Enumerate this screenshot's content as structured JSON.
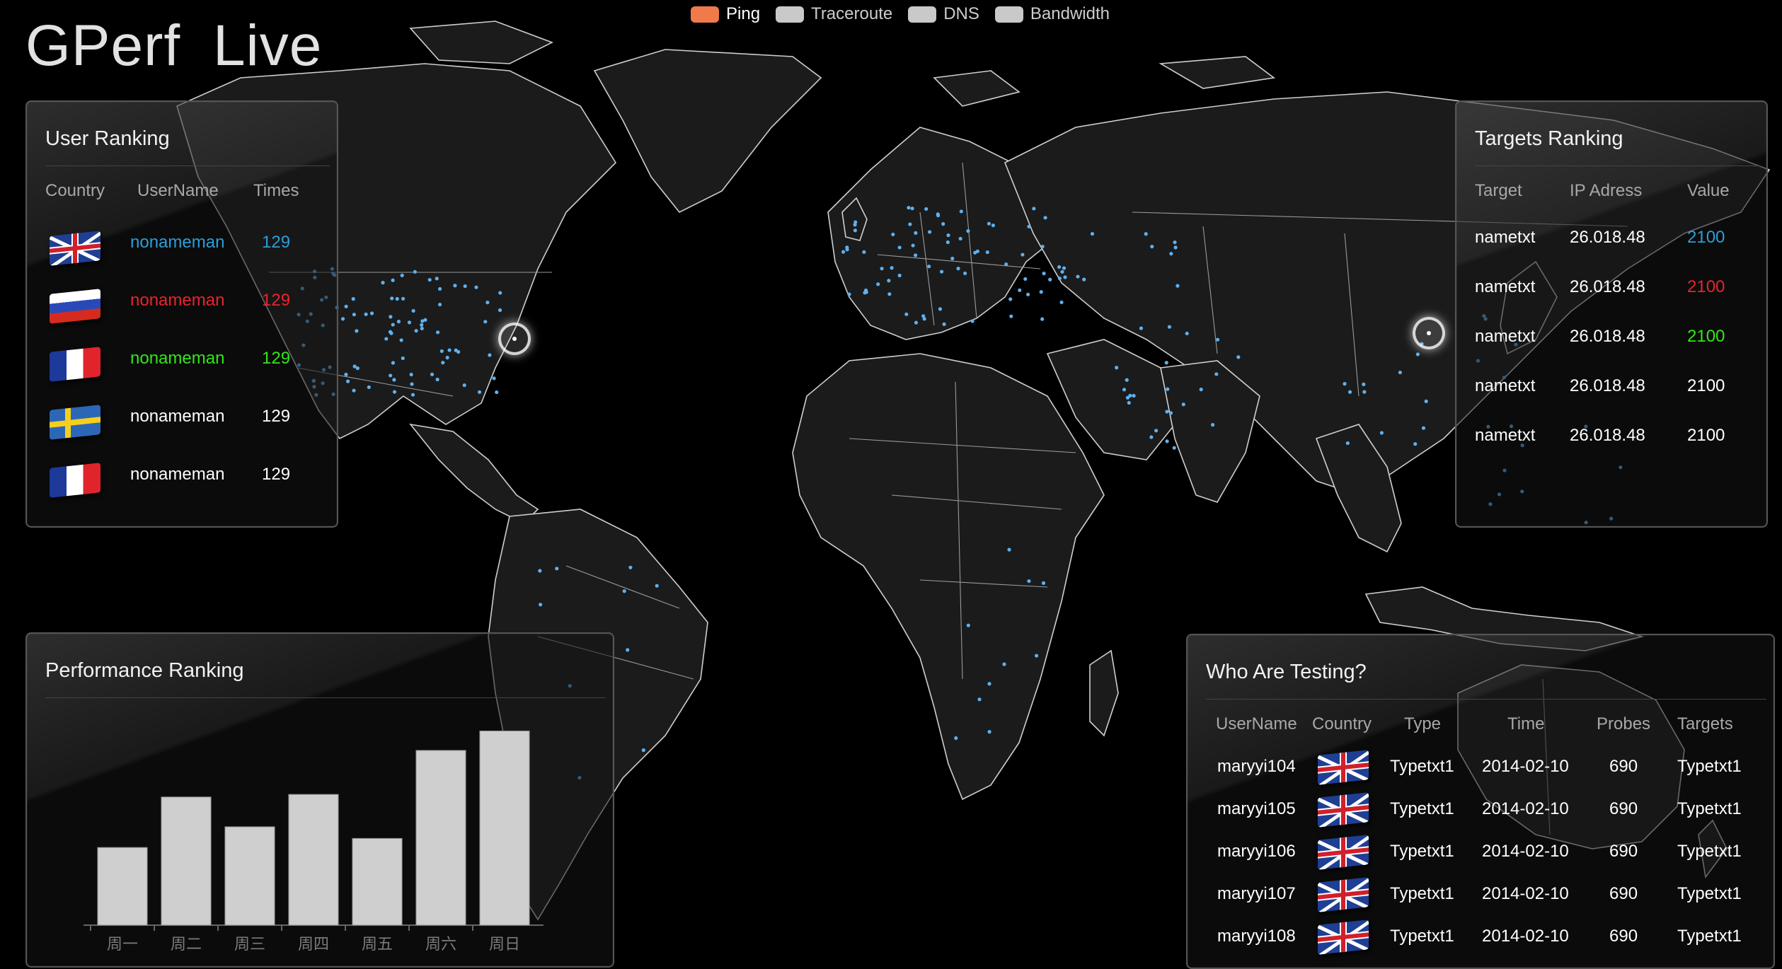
{
  "app": {
    "title": "GPerf  Live"
  },
  "legend": [
    {
      "label": "Ping",
      "color": "#f07a4a",
      "active": true
    },
    {
      "label": "Traceroute",
      "color": "#c9c9c9",
      "active": false
    },
    {
      "label": "DNS",
      "color": "#c9c9c9",
      "active": false
    },
    {
      "label": "Bandwidth",
      "color": "#c9c9c9",
      "active": false
    }
  ],
  "user_ranking": {
    "title": "User Ranking",
    "headers": [
      "Country",
      "UserName",
      "Times"
    ],
    "rows": [
      {
        "flag": "uk-flag-icon",
        "username": "nonameman",
        "times": "129",
        "color": "#2a9fd8"
      },
      {
        "flag": "russia-flag-icon",
        "username": "nonameman",
        "times": "129",
        "color": "#e8242c"
      },
      {
        "flag": "france-flag-icon",
        "username": "nonameman",
        "times": "129",
        "color": "#33e61a"
      },
      {
        "flag": "sweden-flag-icon",
        "username": "nonameman",
        "times": "129",
        "color": "#ffffff"
      },
      {
        "flag": "france-flag-icon",
        "username": "nonameman",
        "times": "129",
        "color": "#ffffff"
      }
    ]
  },
  "targets_ranking": {
    "title": "Targets Ranking",
    "headers": [
      "Target",
      "IP Adress",
      "Value"
    ],
    "rows": [
      {
        "target": "nametxt",
        "ip": "26.018.48",
        "value": "2100",
        "color": "#2a9fd8"
      },
      {
        "target": "nametxt",
        "ip": "26.018.48",
        "value": "2100",
        "color": "#e8242c"
      },
      {
        "target": "nametxt",
        "ip": "26.018.48",
        "value": "2100",
        "color": "#33e61a"
      },
      {
        "target": "nametxt",
        "ip": "26.018.48",
        "value": "2100",
        "color": "#ffffff"
      },
      {
        "target": "nametxt",
        "ip": "26.018.48",
        "value": "2100",
        "color": "#ffffff"
      }
    ]
  },
  "who_testing": {
    "title": "Who Are Testing?",
    "headers": [
      "UserName",
      "Country",
      "Type",
      "Time",
      "Probes",
      "Targets"
    ],
    "rows": [
      {
        "username": "maryyi104",
        "flag": "uk-flag-icon",
        "type": "Typetxt1",
        "time": "2014-02-10",
        "probes": "690",
        "targets": "Typetxt1"
      },
      {
        "username": "maryyi105",
        "flag": "uk-flag-icon",
        "type": "Typetxt1",
        "time": "2014-02-10",
        "probes": "690",
        "targets": "Typetxt1"
      },
      {
        "username": "maryyi106",
        "flag": "uk-flag-icon",
        "type": "Typetxt1",
        "time": "2014-02-10",
        "probes": "690",
        "targets": "Typetxt1"
      },
      {
        "username": "maryyi107",
        "flag": "uk-flag-icon",
        "type": "Typetxt1",
        "time": "2014-02-10",
        "probes": "690",
        "targets": "Typetxt1"
      },
      {
        "username": "maryyi108",
        "flag": "uk-flag-icon",
        "type": "Typetxt1",
        "time": "2014-02-10",
        "probes": "690",
        "targets": "Typetxt1"
      }
    ]
  },
  "performance_ranking": {
    "title": "Performance Ranking"
  },
  "chart_data": {
    "type": "bar",
    "categories": [
      "周一",
      "周二",
      "周三",
      "周四",
      "周五",
      "周六",
      "周日"
    ],
    "values": [
      120,
      198,
      152,
      202,
      134,
      270,
      300
    ],
    "title": "",
    "xlabel": "",
    "ylabel": "",
    "ylim": [
      0,
      330
    ],
    "grid": false
  },
  "map": {
    "markers": [
      "us-east-marker",
      "east-asia-marker"
    ]
  }
}
